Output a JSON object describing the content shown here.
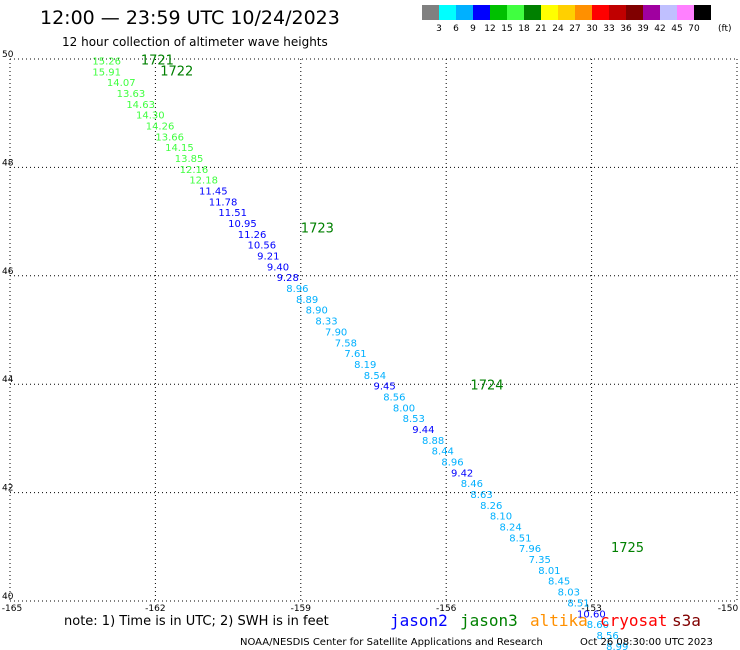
{
  "header": {
    "title": "12:00 — 23:59 UTC 10/24/2023",
    "subtitle": "12 hour collection of altimeter wave heights"
  },
  "colorbar": {
    "labels": [
      "3",
      "6",
      "9",
      "12",
      "15",
      "18",
      "21",
      "24",
      "27",
      "30",
      "33",
      "36",
      "39",
      "42",
      "45",
      "70"
    ],
    "unit": "(ft)",
    "colors": [
      "#808080",
      "#00ffff",
      "#00b0ff",
      "#0000ff",
      "#00c000",
      "#40ff40",
      "#008000",
      "#ffff00",
      "#ffd000",
      "#ff9000",
      "#ff0000",
      "#c00000",
      "#800000",
      "#a000a0",
      "#c0c0ff",
      "#ff80ff",
      "#000000"
    ]
  },
  "footer": {
    "note": "note: 1) Time is in UTC; 2) SWH is in feet",
    "credit": "NOAA/NESDIS Center for Satellite Applications and Research",
    "timestamp": "Oct 26 08:30:00 UTC 2023"
  },
  "legend": [
    {
      "label": "jason2",
      "color": "#0000ff"
    },
    {
      "label": "jason3",
      "color": "#008000"
    },
    {
      "label": "altika",
      "color": "#ff9000"
    },
    {
      "label": "cryosat",
      "color": "#ff0000"
    },
    {
      "label": "s3a",
      "color": "#800000"
    }
  ],
  "chart_data": {
    "type": "scatter",
    "xlim": [
      -165,
      -150
    ],
    "ylim": [
      40,
      50
    ],
    "x_ticks": [
      "-165",
      "-162",
      "-159",
      "-156",
      "-153",
      "-150"
    ],
    "y_ticks": [
      "50",
      "48",
      "46",
      "44",
      "42",
      "40"
    ],
    "grid": true,
    "points": [
      {
        "lon": -163.3,
        "lat": 49.9,
        "value": "15.26",
        "color": "#40ff40"
      },
      {
        "lon": -163.3,
        "lat": 49.7,
        "value": "15.91",
        "color": "#40ff40"
      },
      {
        "lon": -163.0,
        "lat": 49.5,
        "value": "14.07",
        "color": "#40ff40"
      },
      {
        "lon": -162.8,
        "lat": 49.3,
        "value": "13.63",
        "color": "#40ff40"
      },
      {
        "lon": -162.6,
        "lat": 49.1,
        "value": "14.63",
        "color": "#40ff40"
      },
      {
        "lon": -162.4,
        "lat": 48.9,
        "value": "14.30",
        "color": "#40ff40"
      },
      {
        "lon": -162.2,
        "lat": 48.7,
        "value": "14.26",
        "color": "#40ff40"
      },
      {
        "lon": -162.0,
        "lat": 48.5,
        "value": "13.66",
        "color": "#40ff40"
      },
      {
        "lon": -161.8,
        "lat": 48.3,
        "value": "14.15",
        "color": "#40ff40"
      },
      {
        "lon": -161.6,
        "lat": 48.1,
        "value": "13.85",
        "color": "#40ff40"
      },
      {
        "lon": -161.5,
        "lat": 47.9,
        "value": "12.16",
        "color": "#40ff40"
      },
      {
        "lon": -161.3,
        "lat": 47.7,
        "value": "12.18",
        "color": "#40ff40"
      },
      {
        "lon": -161.1,
        "lat": 47.5,
        "value": "11.45",
        "color": "#0000ff"
      },
      {
        "lon": -160.9,
        "lat": 47.3,
        "value": "11.78",
        "color": "#0000ff"
      },
      {
        "lon": -160.7,
        "lat": 47.1,
        "value": "11.51",
        "color": "#0000ff"
      },
      {
        "lon": -160.5,
        "lat": 46.9,
        "value": "10.95",
        "color": "#0000ff"
      },
      {
        "lon": -160.3,
        "lat": 46.7,
        "value": "11.26",
        "color": "#0000ff"
      },
      {
        "lon": -160.1,
        "lat": 46.5,
        "value": "10.56",
        "color": "#0000ff"
      },
      {
        "lon": -159.9,
        "lat": 46.3,
        "value": "9.21",
        "color": "#0000ff"
      },
      {
        "lon": -159.7,
        "lat": 46.1,
        "value": "9.40",
        "color": "#0000ff"
      },
      {
        "lon": -159.5,
        "lat": 45.9,
        "value": "9.28",
        "color": "#0000ff"
      },
      {
        "lon": -159.3,
        "lat": 45.7,
        "value": "8.96",
        "color": "#00b0ff"
      },
      {
        "lon": -159.1,
        "lat": 45.5,
        "value": "8.89",
        "color": "#00b0ff"
      },
      {
        "lon": -158.9,
        "lat": 45.3,
        "value": "8.90",
        "color": "#00b0ff"
      },
      {
        "lon": -158.7,
        "lat": 45.1,
        "value": "8.33",
        "color": "#00b0ff"
      },
      {
        "lon": -158.5,
        "lat": 44.9,
        "value": "7.90",
        "color": "#00b0ff"
      },
      {
        "lon": -158.3,
        "lat": 44.7,
        "value": "7.58",
        "color": "#00b0ff"
      },
      {
        "lon": -158.1,
        "lat": 44.5,
        "value": "7.61",
        "color": "#00b0ff"
      },
      {
        "lon": -157.9,
        "lat": 44.3,
        "value": "8.19",
        "color": "#00b0ff"
      },
      {
        "lon": -157.7,
        "lat": 44.1,
        "value": "8.54",
        "color": "#00b0ff"
      },
      {
        "lon": -157.5,
        "lat": 43.9,
        "value": "9.45",
        "color": "#0000ff"
      },
      {
        "lon": -157.3,
        "lat": 43.7,
        "value": "8.56",
        "color": "#00b0ff"
      },
      {
        "lon": -157.1,
        "lat": 43.5,
        "value": "8.00",
        "color": "#00b0ff"
      },
      {
        "lon": -156.9,
        "lat": 43.3,
        "value": "8.53",
        "color": "#00b0ff"
      },
      {
        "lon": -156.7,
        "lat": 43.1,
        "value": "9.44",
        "color": "#0000ff"
      },
      {
        "lon": -156.5,
        "lat": 42.9,
        "value": "8.88",
        "color": "#00b0ff"
      },
      {
        "lon": -156.3,
        "lat": 42.7,
        "value": "8.44",
        "color": "#00b0ff"
      },
      {
        "lon": -156.1,
        "lat": 42.5,
        "value": "8.96",
        "color": "#00b0ff"
      },
      {
        "lon": -155.9,
        "lat": 42.3,
        "value": "9.42",
        "color": "#0000ff"
      },
      {
        "lon": -155.7,
        "lat": 42.1,
        "value": "8.46",
        "color": "#00b0ff"
      },
      {
        "lon": -155.5,
        "lat": 41.9,
        "value": "8.63",
        "color": "#00b0ff"
      },
      {
        "lon": -155.3,
        "lat": 41.7,
        "value": "8.26",
        "color": "#00b0ff"
      },
      {
        "lon": -155.1,
        "lat": 41.5,
        "value": "8.10",
        "color": "#00b0ff"
      },
      {
        "lon": -154.9,
        "lat": 41.3,
        "value": "8.24",
        "color": "#00b0ff"
      },
      {
        "lon": -154.7,
        "lat": 41.1,
        "value": "8.51",
        "color": "#00b0ff"
      },
      {
        "lon": -154.5,
        "lat": 40.9,
        "value": "7.96",
        "color": "#00b0ff"
      },
      {
        "lon": -154.3,
        "lat": 40.7,
        "value": "7.35",
        "color": "#00b0ff"
      },
      {
        "lon": -154.1,
        "lat": 40.5,
        "value": "8.01",
        "color": "#00b0ff"
      },
      {
        "lon": -153.9,
        "lat": 40.3,
        "value": "8.45",
        "color": "#00b0ff"
      },
      {
        "lon": -153.7,
        "lat": 40.1,
        "value": "8.03",
        "color": "#00b0ff"
      },
      {
        "lon": -153.5,
        "lat": 39.9,
        "value": "8.51",
        "color": "#00b0ff"
      },
      {
        "lon": -153.3,
        "lat": 39.7,
        "value": "10.60",
        "color": "#0000ff"
      },
      {
        "lon": -153.1,
        "lat": 39.5,
        "value": "8.60",
        "color": "#00b0ff"
      },
      {
        "lon": -152.9,
        "lat": 39.3,
        "value": "8.56",
        "color": "#00b0ff"
      },
      {
        "lon": -152.7,
        "lat": 39.1,
        "value": "8.99",
        "color": "#00b0ff"
      },
      {
        "lon": -152.5,
        "lat": 38.9,
        "value": "10.41",
        "color": "#0000ff"
      },
      {
        "lon": -152.3,
        "lat": 38.7,
        "value": "8.45",
        "color": "#00b0ff"
      }
    ],
    "annotations": [
      {
        "lon": -162.3,
        "lat": 49.9,
        "text": "1721",
        "color": "#008000"
      },
      {
        "lon": -161.9,
        "lat": 49.7,
        "text": "1722",
        "color": "#008000"
      },
      {
        "lon": -159.0,
        "lat": 46.8,
        "text": "1723",
        "color": "#008000"
      },
      {
        "lon": -155.5,
        "lat": 43.9,
        "text": "1724",
        "color": "#008000"
      },
      {
        "lon": -152.6,
        "lat": 40.9,
        "text": "1725",
        "color": "#008000"
      }
    ]
  }
}
